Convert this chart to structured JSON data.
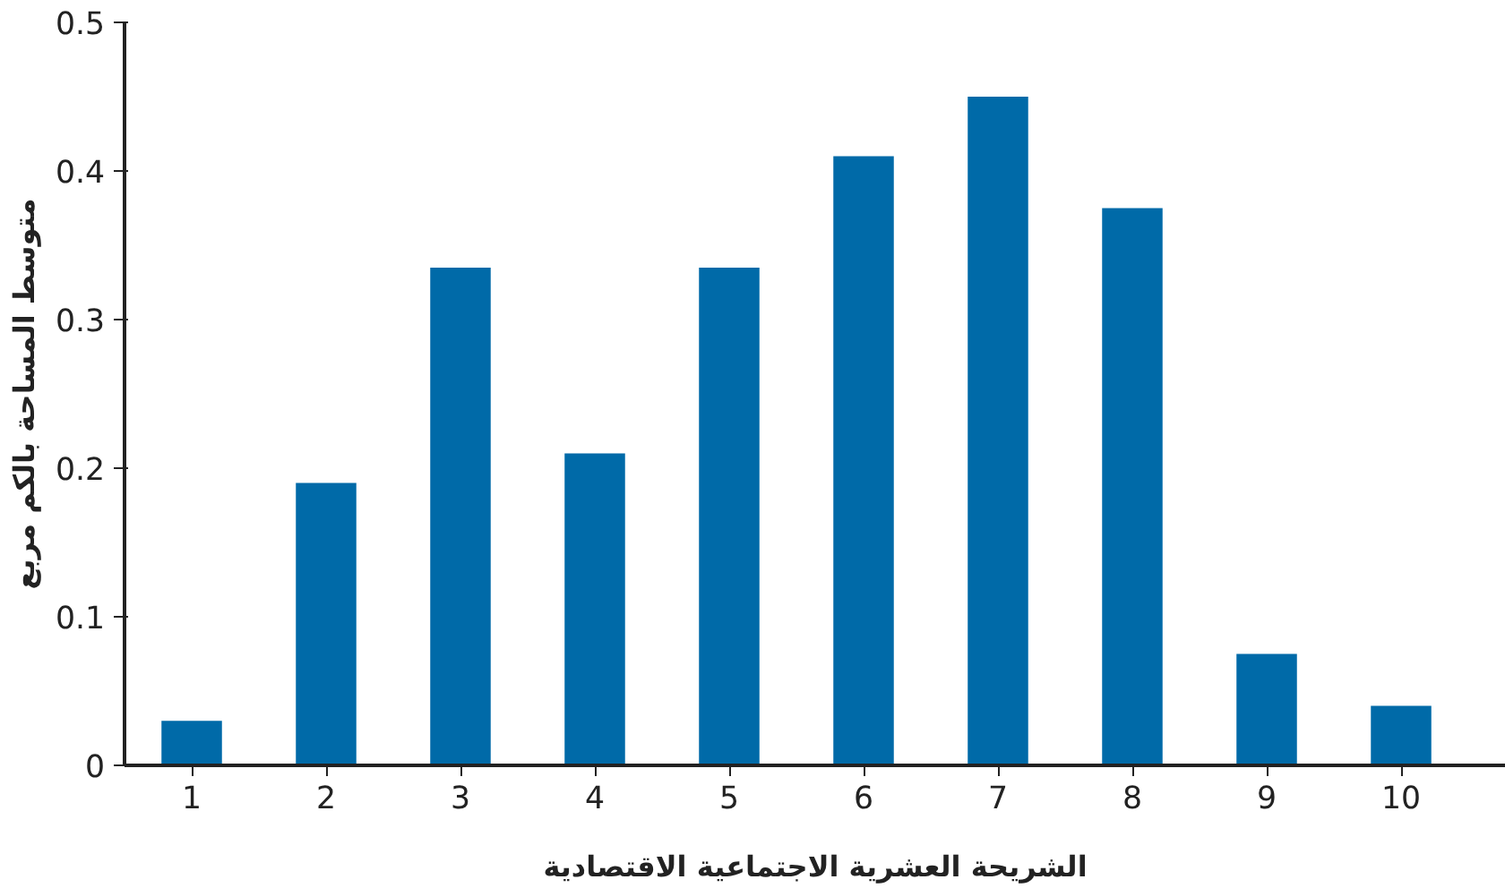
{
  "chart_data": {
    "type": "bar",
    "xlabel": "الشريحة العشرية الاجتماعية الاقتصادية",
    "ylabel": "متوسط المساحة بالكم مربع",
    "categories": [
      "1",
      "2",
      "3",
      "4",
      "5",
      "6",
      "7",
      "8",
      "9",
      "10"
    ],
    "values": [
      0.03,
      0.19,
      0.335,
      0.21,
      0.335,
      0.41,
      0.45,
      0.375,
      0.075,
      0.04
    ],
    "color": "#006aa8",
    "ylim": [
      0,
      0.5
    ],
    "yticks": [
      0,
      0.1,
      0.2,
      0.3,
      0.4,
      0.5
    ],
    "grid": false
  }
}
